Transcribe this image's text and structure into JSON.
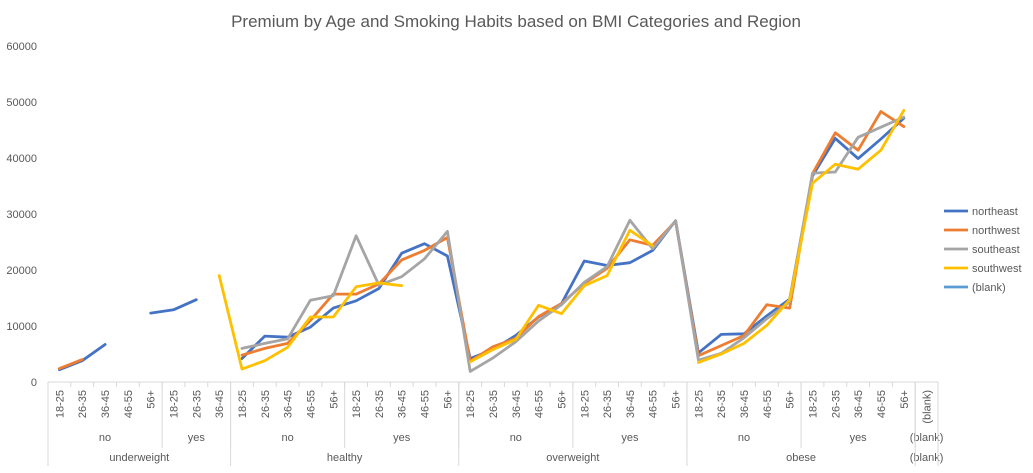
{
  "chart_data": {
    "type": "line",
    "title": "Premium by Age and Smoking Habits based on BMI Categories and Region",
    "xlabel": "",
    "ylabel": "",
    "ylim": [
      0,
      60000
    ],
    "yticks": [
      0,
      10000,
      20000,
      30000,
      40000,
      50000,
      60000
    ],
    "grid": false,
    "legend_position": "right",
    "age_groups": [
      "18-25",
      "26-35",
      "36-45",
      "46-55",
      "56+"
    ],
    "categories": [
      "18-25",
      "26-35",
      "36-45",
      "46-55",
      "56+",
      "18-25",
      "26-35",
      "36-45",
      "18-25",
      "26-35",
      "36-45",
      "46-55",
      "56+",
      "18-25",
      "26-35",
      "36-45",
      "46-55",
      "56+",
      "18-25",
      "26-35",
      "36-45",
      "46-55",
      "56+",
      "18-25",
      "26-35",
      "36-45",
      "46-55",
      "56+",
      "18-25",
      "26-35",
      "36-45",
      "46-55",
      "56+",
      "18-25",
      "26-35",
      "36-45",
      "46-55",
      "56+",
      "(blank)"
    ],
    "smoker_groups": [
      {
        "label": "no",
        "start": 0,
        "end": 4
      },
      {
        "label": "yes",
        "start": 5,
        "end": 7
      },
      {
        "label": "no",
        "start": 8,
        "end": 12
      },
      {
        "label": "yes",
        "start": 13,
        "end": 17
      },
      {
        "label": "no",
        "start": 18,
        "end": 22
      },
      {
        "label": "yes",
        "start": 23,
        "end": 27
      },
      {
        "label": "no",
        "start": 28,
        "end": 32
      },
      {
        "label": "yes",
        "start": 33,
        "end": 37
      },
      {
        "label": "(blank)",
        "start": 38,
        "end": 38
      }
    ],
    "bmi_groups": [
      {
        "label": "underweight",
        "start": 0,
        "end": 7
      },
      {
        "label": "healthy",
        "start": 8,
        "end": 17
      },
      {
        "label": "overweight",
        "start": 18,
        "end": 27
      },
      {
        "label": "obese",
        "start": 28,
        "end": 37
      },
      {
        "label": "(blank)",
        "start": 38,
        "end": 38
      }
    ],
    "series": [
      {
        "name": "northeast",
        "color": "#4472C4",
        "values": [
          2200,
          3800,
          6700,
          null,
          12300,
          12900,
          14700,
          null,
          4200,
          8200,
          8000,
          9800,
          13200,
          14500,
          16700,
          23000,
          24700,
          22500,
          4200,
          5800,
          8300,
          11600,
          14000,
          21600,
          20800,
          21300,
          23500,
          28800,
          5200,
          8500,
          8600,
          11800,
          14800,
          36800,
          43500,
          39900,
          43400,
          47100,
          null
        ]
      },
      {
        "name": "northwest",
        "color": "#ED7D31",
        "values": [
          2400,
          4000,
          null,
          null,
          null,
          null,
          null,
          null,
          4800,
          6000,
          6900,
          11000,
          15700,
          15700,
          17500,
          21800,
          23500,
          25800,
          3700,
          6300,
          7800,
          11700,
          14000,
          17600,
          20300,
          25400,
          24400,
          28700,
          4700,
          6500,
          8300,
          13800,
          13200,
          37200,
          44500,
          41400,
          48300,
          45600,
          null
        ]
      },
      {
        "name": "southeast",
        "color": "#A5A5A5",
        "values": [
          null,
          null,
          null,
          null,
          null,
          null,
          null,
          null,
          6000,
          6900,
          7700,
          14600,
          15400,
          26100,
          17300,
          18800,
          22000,
          26900,
          1900,
          4300,
          7200,
          10900,
          13800,
          17800,
          20600,
          28900,
          23800,
          28800,
          3900,
          5100,
          7900,
          11300,
          14300,
          37300,
          37500,
          43700,
          45500,
          47300,
          null
        ]
      },
      {
        "name": "southwest",
        "color": "#FFC000",
        "values": [
          null,
          null,
          null,
          null,
          null,
          null,
          null,
          19000,
          2300,
          3800,
          6200,
          11600,
          11600,
          17000,
          17700,
          17200,
          null,
          null,
          3600,
          5800,
          7600,
          13700,
          12200,
          17200,
          19000,
          27100,
          24300,
          null,
          3500,
          5000,
          6900,
          10100,
          14700,
          35500,
          38900,
          38000,
          41400,
          48500,
          null
        ]
      },
      {
        "name": "(blank)",
        "color": "#5B9BD5",
        "values": [
          null,
          null,
          null,
          null,
          null,
          null,
          null,
          null,
          null,
          null,
          null,
          null,
          null,
          null,
          null,
          null,
          null,
          null,
          null,
          null,
          null,
          null,
          null,
          null,
          null,
          null,
          null,
          null,
          null,
          null,
          null,
          null,
          null,
          null,
          null,
          null,
          null,
          null,
          null
        ]
      }
    ]
  }
}
